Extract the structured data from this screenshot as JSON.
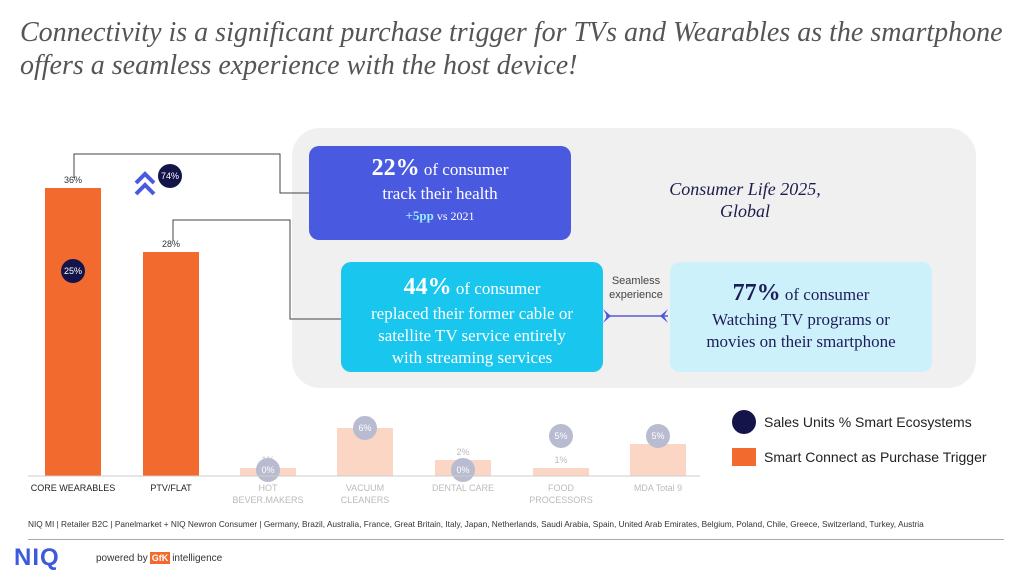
{
  "title": "Connectivity is a significant purchase trigger for TVs and Wearables as the smartphone offers a seamless experience with the host device!",
  "cards": {
    "health": {
      "pct": "22%",
      "text1": " of consumer",
      "text2": "track their health",
      "delta": "+5pp",
      "delta_suffix": " vs 2021"
    },
    "streaming": {
      "pct": "44%",
      "text1": " of consumer",
      "text2": "replaced their former cable or",
      "text3": "satellite TV service entirely",
      "text4": "with streaming services"
    },
    "smartphone": {
      "pct": "77%",
      "text1": " of consumer",
      "text2": "Watching TV programs or",
      "text3": "movies on their smartphone"
    }
  },
  "consumer_life": {
    "line1": "Consumer Life 2025,",
    "line2": "Global"
  },
  "seamless": {
    "line1": "Seamless",
    "line2": "experience"
  },
  "callout_badge": "74%",
  "legend": {
    "circle": "Sales Units % Smart Ecosystems",
    "bar": "Smart Connect as Purchase Trigger"
  },
  "source": "NIQ MI | Retailer B2C | Panelmarket + NIQ Newron Consumer | Germany, Brazil, Australia, France, Great Britain, Italy, Japan, Netherlands, Saudi Arabia, Spain, United Arab Emirates, Belgium, Poland, Chile, Greece, Switzerland, Turkey, Austria",
  "footer": {
    "logo": "NIQ",
    "powered_by": "powered by",
    "gfk": "GfK",
    "intelligence": "intelligence"
  },
  "colors": {
    "bar": "#f26a2e",
    "bar_faded": "#fcd6c4",
    "circle": "#14144a",
    "circle_faded": "#b9bbd0"
  },
  "chart_data": {
    "type": "bar",
    "categories": [
      "CORE WEARABLES",
      "PTV/FLAT",
      "HOT BEVER.MAKERS",
      "VACUUM CLEANERS",
      "DENTAL CARE",
      "FOOD PROCESSORS",
      "MDA Total 9"
    ],
    "category_lines": [
      [
        "CORE WEARABLES"
      ],
      [
        "PTV/FLAT"
      ],
      [
        "HOT",
        "BEVER.MAKERS"
      ],
      [
        "VACUUM",
        "CLEANERS"
      ],
      [
        "DENTAL CARE"
      ],
      [
        "FOOD",
        "PROCESSORS"
      ],
      [
        "MDA Total 9"
      ]
    ],
    "series": [
      {
        "name": "Smart Connect as Purchase Trigger",
        "values": [
          36,
          28,
          1,
          6,
          2,
          1,
          4
        ],
        "labels": [
          "36%",
          "28%",
          "1%",
          "6%",
          "2%",
          "1%",
          "4%"
        ]
      },
      {
        "name": "Sales Units % Smart Ecosystems",
        "values": [
          25,
          null,
          0,
          6,
          0,
          5,
          5
        ],
        "labels": [
          "25%",
          "",
          "0%",
          "6%",
          "0%",
          "5%",
          "5%"
        ]
      }
    ],
    "highlighted": [
      true,
      true,
      false,
      false,
      false,
      false,
      false
    ]
  }
}
